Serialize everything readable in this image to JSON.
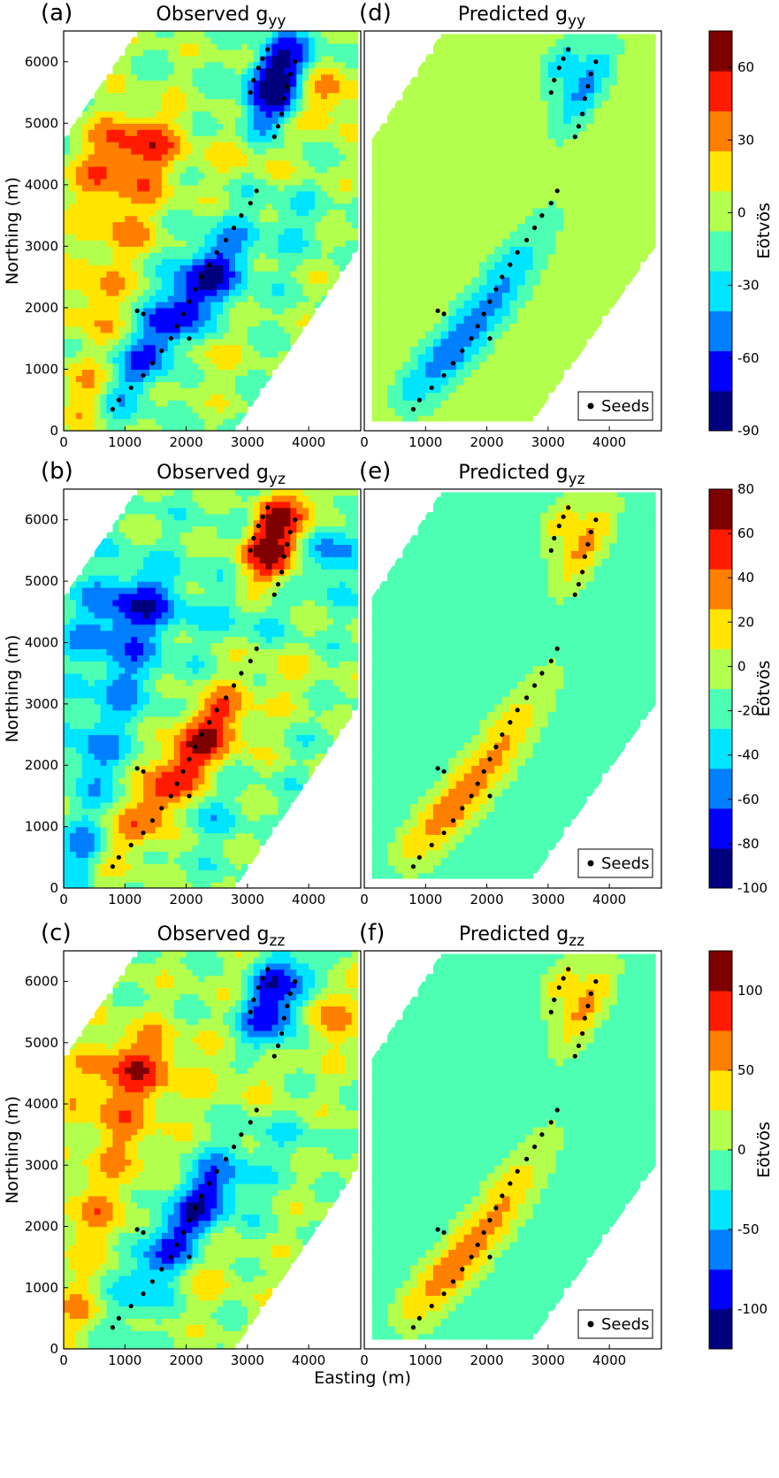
{
  "figure": {
    "xlabel": "Easting (m)",
    "ylabel": "Northing (m)",
    "cbar_label": "Eötvös",
    "legend_label": "Seeds"
  },
  "colors": {
    "cmap": [
      "#00007f",
      "#0000ff",
      "#007fff",
      "#00e5ff",
      "#4dffb2",
      "#b2ff4d",
      "#ffe500",
      "#ff7f00",
      "#ff1a00",
      "#7f0000"
    ],
    "outside": "#ffffff",
    "seed": "#000000"
  },
  "chart_data": [
    {
      "type": "heatmap",
      "letter": "(a)",
      "title_main": "Observed g",
      "title_sub": "yy",
      "xticks": [
        0,
        1000,
        2000,
        3000,
        4000
      ],
      "yticks": [
        0,
        1000,
        2000,
        3000,
        4000,
        5000,
        6000
      ],
      "xlim": [
        0,
        4850
      ],
      "ylim": [
        0,
        6500
      ],
      "seeds_shown": true,
      "legend": false
    },
    {
      "type": "heatmap",
      "letter": "(d)",
      "title_main": "Predicted g",
      "title_sub": "yy",
      "xticks": [
        0,
        1000,
        2000,
        3000,
        4000
      ],
      "yticks": [],
      "xlim": [
        0,
        4850
      ],
      "ylim": [
        0,
        6500
      ],
      "seeds_shown": true,
      "legend": true,
      "colorbar": {
        "min": -90,
        "max": 75,
        "ticks": [
          60,
          30,
          0,
          -30,
          -60,
          -90
        ]
      }
    },
    {
      "type": "heatmap",
      "letter": "(b)",
      "title_main": "Observed g",
      "title_sub": "yz",
      "xticks": [
        0,
        1000,
        2000,
        3000,
        4000
      ],
      "yticks": [
        0,
        1000,
        2000,
        3000,
        4000,
        5000,
        6000
      ],
      "xlim": [
        0,
        4850
      ],
      "ylim": [
        0,
        6500
      ],
      "seeds_shown": true,
      "legend": false
    },
    {
      "type": "heatmap",
      "letter": "(e)",
      "title_main": "Predicted g",
      "title_sub": "yz",
      "xticks": [
        0,
        1000,
        2000,
        3000,
        4000
      ],
      "yticks": [],
      "xlim": [
        0,
        4850
      ],
      "ylim": [
        0,
        6500
      ],
      "seeds_shown": true,
      "legend": true,
      "colorbar": {
        "min": -100,
        "max": 80,
        "ticks": [
          80,
          60,
          40,
          20,
          0,
          -20,
          -40,
          -60,
          -80,
          -100
        ]
      }
    },
    {
      "type": "heatmap",
      "letter": "(c)",
      "title_main": "Observed g",
      "title_sub": "zz",
      "xticks": [
        0,
        1000,
        2000,
        3000,
        4000
      ],
      "yticks": [
        0,
        1000,
        2000,
        3000,
        4000,
        5000,
        6000
      ],
      "xlim": [
        0,
        4850
      ],
      "ylim": [
        0,
        6500
      ],
      "seeds_shown": true,
      "legend": false
    },
    {
      "type": "heatmap",
      "letter": "(f)",
      "title_main": "Predicted g",
      "title_sub": "zz",
      "xticks": [
        0,
        1000,
        2000,
        3000,
        4000
      ],
      "yticks": [],
      "xlim": [
        0,
        4850
      ],
      "ylim": [
        0,
        6500
      ],
      "seeds_shown": true,
      "legend": true,
      "colorbar": {
        "min": -125,
        "max": 125,
        "ticks": [
          100,
          50,
          0,
          -50,
          -100
        ]
      }
    }
  ],
  "seeds": [
    [
      3780,
      6000
    ],
    [
      3700,
      5800
    ],
    [
      3650,
      5600
    ],
    [
      3600,
      5400
    ],
    [
      3560,
      5150
    ],
    [
      3500,
      4950
    ],
    [
      3440,
      4780
    ],
    [
      3330,
      6200
    ],
    [
      3250,
      6050
    ],
    [
      3180,
      5900
    ],
    [
      3100,
      5700
    ],
    [
      3050,
      5500
    ],
    [
      3150,
      3900
    ],
    [
      3050,
      3700
    ],
    [
      2900,
      3500
    ],
    [
      2780,
      3300
    ],
    [
      2650,
      3100
    ],
    [
      2500,
      2900
    ],
    [
      2380,
      2700
    ],
    [
      2250,
      2500
    ],
    [
      2150,
      2300
    ],
    [
      2050,
      2100
    ],
    [
      1950,
      1900
    ],
    [
      1850,
      1700
    ],
    [
      1750,
      1500
    ],
    [
      1600,
      1300
    ],
    [
      1450,
      1100
    ],
    [
      1300,
      900
    ],
    [
      1100,
      700
    ],
    [
      900,
      500
    ],
    [
      800,
      350
    ],
    [
      1300,
      1900
    ],
    [
      1200,
      1950
    ],
    [
      2050,
      1500
    ]
  ]
}
